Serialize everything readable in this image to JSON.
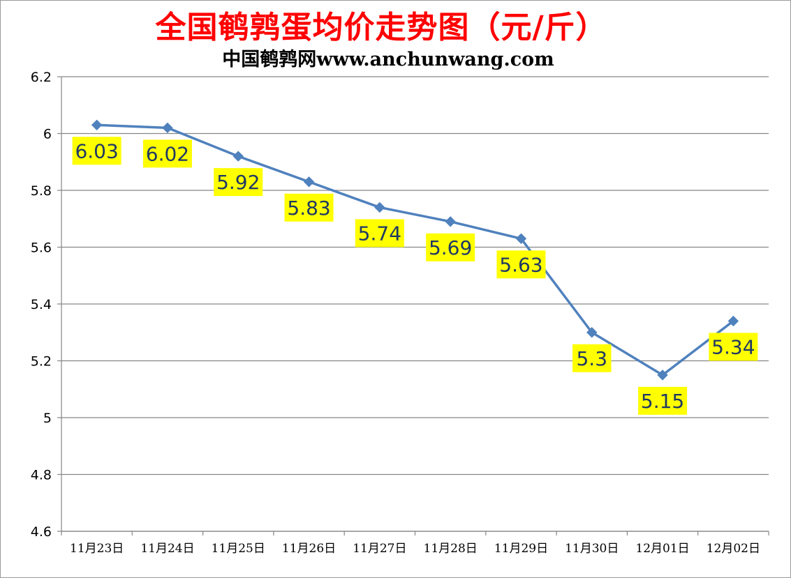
{
  "chart_data": {
    "type": "line",
    "title": "全国鹌鹑蛋均价走势图（元/斤）",
    "subtitle": "中国鹌鹑网www.anchunwang.com",
    "categories": [
      "11月23日",
      "11月24日",
      "11月25日",
      "11月26日",
      "11月27日",
      "11月28日",
      "11月29日",
      "11月30日",
      "12月01日",
      "12月02日"
    ],
    "series": [
      {
        "values": [
          6.03,
          6.02,
          5.92,
          5.83,
          5.74,
          5.69,
          5.63,
          5.3,
          5.15,
          5.34
        ]
      }
    ],
    "data_labels": [
      "6.03",
      "6.02",
      "5.92",
      "5.83",
      "5.74",
      "5.69",
      "5.63",
      "5.3",
      "5.15",
      "5.34"
    ],
    "ylim": [
      4.6,
      6.2
    ],
    "yticks": [
      "6.2",
      "6",
      "5.8",
      "5.6",
      "5.4",
      "5.2",
      "5",
      "4.8",
      "4.6"
    ],
    "grid": true,
    "legend": "none",
    "colors": {
      "line": "#4f81bd",
      "label_bg": "#ffff00",
      "label_text": "#1f3864",
      "title": "#ff0000",
      "grid": "#868686"
    }
  }
}
